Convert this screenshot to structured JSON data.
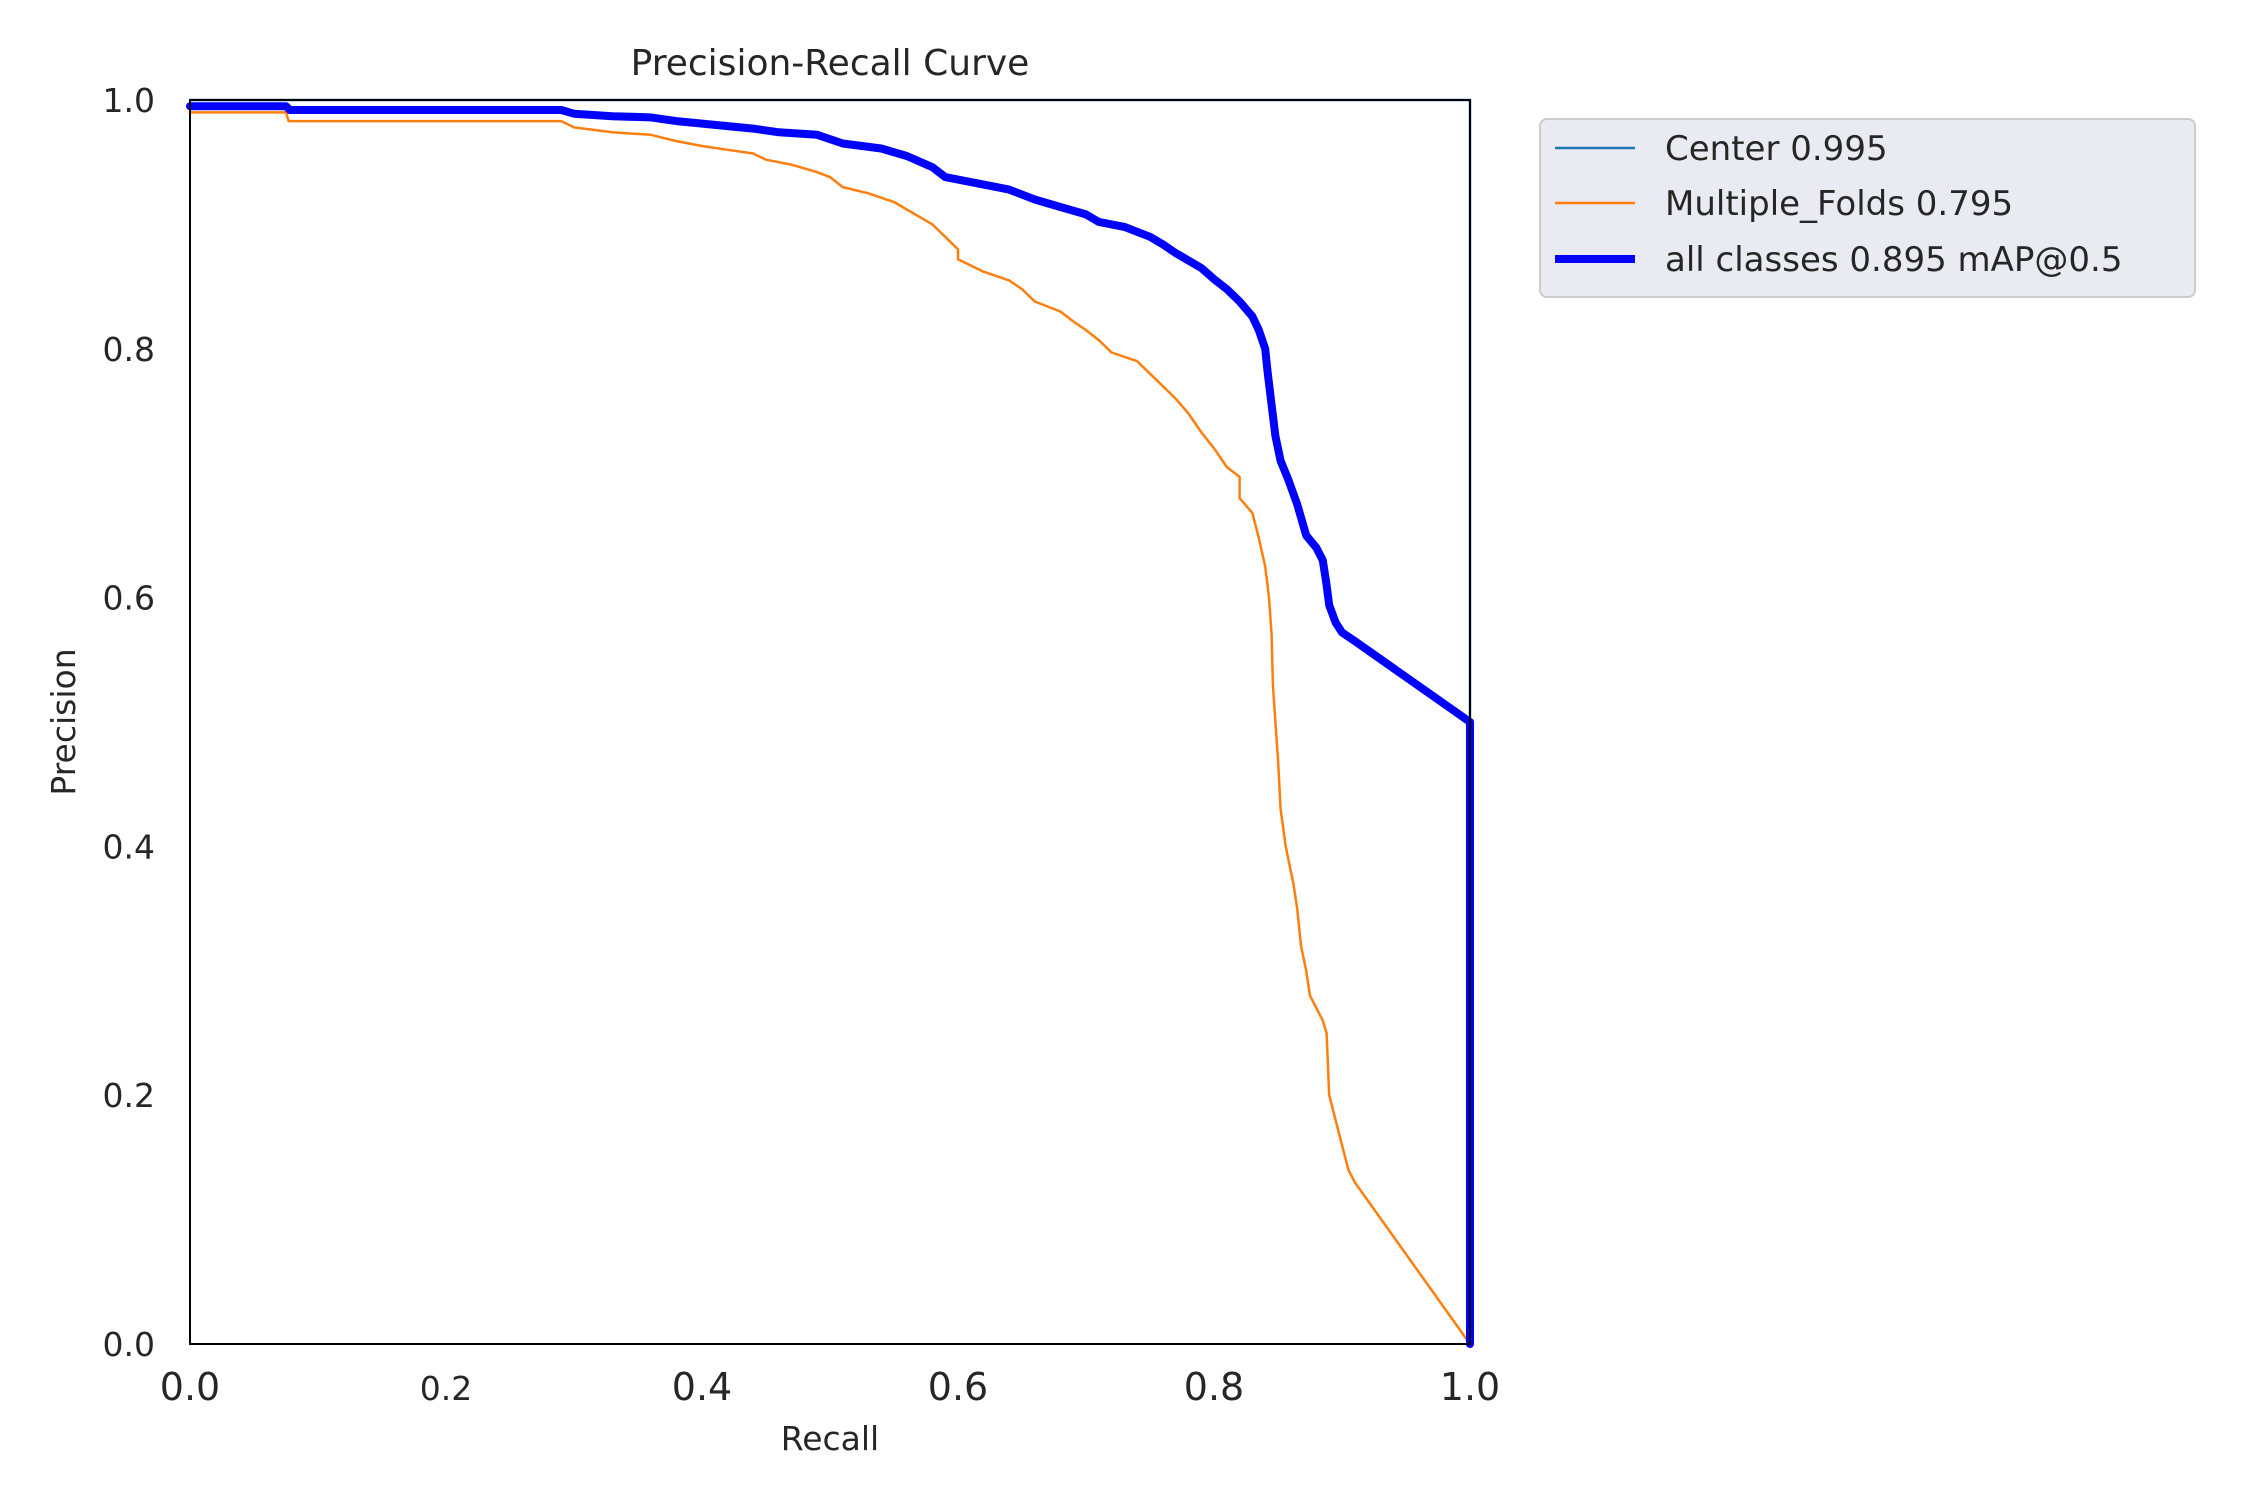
{
  "chart_data": {
    "type": "line",
    "title": "Precision-Recall Curve",
    "xlabel": "Recall",
    "ylabel": "Precision",
    "xlim": [
      0.0,
      1.0
    ],
    "ylim": [
      0.0,
      1.0
    ],
    "x_ticks": [
      0.0,
      0.2,
      0.4,
      0.6,
      0.8,
      1.0
    ],
    "y_ticks": [
      0.0,
      0.2,
      0.4,
      0.6,
      0.8,
      1.0
    ],
    "x_tick_labels": [
      "0.0",
      "0.2",
      "0.4",
      "0.6",
      "0.8",
      "1.0"
    ],
    "y_tick_labels": [
      "0.0",
      "0.2",
      "0.4",
      "0.6",
      "0.8",
      "1.0"
    ],
    "grid": false,
    "legend_position": "outside-top-right",
    "series": [
      {
        "name": "Center 0.995",
        "color": "#1f77b4",
        "width": "thin",
        "points": [
          [
            0.0,
            1.0
          ],
          [
            0.999,
            1.0
          ],
          [
            1.0,
            1.0
          ],
          [
            1.0,
            0.0
          ]
        ]
      },
      {
        "name": "Multiple_Folds 0.795",
        "color": "#ff7f0e",
        "width": "thin",
        "points": [
          [
            0.0,
            0.99
          ],
          [
            0.075,
            0.99
          ],
          [
            0.077,
            0.983
          ],
          [
            0.1,
            0.983
          ],
          [
            0.2,
            0.983
          ],
          [
            0.29,
            0.983
          ],
          [
            0.3,
            0.978
          ],
          [
            0.33,
            0.974
          ],
          [
            0.36,
            0.972
          ],
          [
            0.38,
            0.967
          ],
          [
            0.4,
            0.963
          ],
          [
            0.42,
            0.96
          ],
          [
            0.44,
            0.957
          ],
          [
            0.45,
            0.952
          ],
          [
            0.47,
            0.948
          ],
          [
            0.49,
            0.942
          ],
          [
            0.5,
            0.938
          ],
          [
            0.51,
            0.93
          ],
          [
            0.53,
            0.925
          ],
          [
            0.55,
            0.918
          ],
          [
            0.56,
            0.912
          ],
          [
            0.58,
            0.9
          ],
          [
            0.59,
            0.89
          ],
          [
            0.6,
            0.88
          ],
          [
            0.6,
            0.872
          ],
          [
            0.62,
            0.862
          ],
          [
            0.64,
            0.855
          ],
          [
            0.65,
            0.848
          ],
          [
            0.66,
            0.838
          ],
          [
            0.68,
            0.83
          ],
          [
            0.69,
            0.822
          ],
          [
            0.7,
            0.815
          ],
          [
            0.71,
            0.807
          ],
          [
            0.72,
            0.797
          ],
          [
            0.74,
            0.79
          ],
          [
            0.75,
            0.78
          ],
          [
            0.76,
            0.77
          ],
          [
            0.77,
            0.76
          ],
          [
            0.78,
            0.748
          ],
          [
            0.79,
            0.733
          ],
          [
            0.8,
            0.72
          ],
          [
            0.81,
            0.705
          ],
          [
            0.82,
            0.697
          ],
          [
            0.82,
            0.68
          ],
          [
            0.83,
            0.668
          ],
          [
            0.835,
            0.648
          ],
          [
            0.84,
            0.625
          ],
          [
            0.843,
            0.6
          ],
          [
            0.845,
            0.57
          ],
          [
            0.846,
            0.53
          ],
          [
            0.848,
            0.5
          ],
          [
            0.85,
            0.47
          ],
          [
            0.852,
            0.43
          ],
          [
            0.856,
            0.4
          ],
          [
            0.862,
            0.37
          ],
          [
            0.865,
            0.35
          ],
          [
            0.868,
            0.32
          ],
          [
            0.872,
            0.3
          ],
          [
            0.875,
            0.28
          ],
          [
            0.88,
            0.27
          ],
          [
            0.885,
            0.26
          ],
          [
            0.888,
            0.25
          ],
          [
            0.89,
            0.2
          ],
          [
            0.895,
            0.18
          ],
          [
            0.9,
            0.16
          ],
          [
            0.905,
            0.14
          ],
          [
            0.91,
            0.13
          ],
          [
            1.0,
            0.0
          ]
        ]
      },
      {
        "name": "all classes 0.895 mAP@0.5",
        "color": "#0000ff",
        "width": "thick",
        "points": [
          [
            0.0,
            0.995
          ],
          [
            0.075,
            0.995
          ],
          [
            0.078,
            0.992
          ],
          [
            0.29,
            0.992
          ],
          [
            0.3,
            0.989
          ],
          [
            0.33,
            0.987
          ],
          [
            0.36,
            0.986
          ],
          [
            0.38,
            0.983
          ],
          [
            0.42,
            0.979
          ],
          [
            0.44,
            0.977
          ],
          [
            0.46,
            0.974
          ],
          [
            0.49,
            0.972
          ],
          [
            0.51,
            0.965
          ],
          [
            0.54,
            0.961
          ],
          [
            0.56,
            0.955
          ],
          [
            0.58,
            0.946
          ],
          [
            0.59,
            0.938
          ],
          [
            0.62,
            0.932
          ],
          [
            0.64,
            0.928
          ],
          [
            0.66,
            0.92
          ],
          [
            0.68,
            0.914
          ],
          [
            0.7,
            0.908
          ],
          [
            0.71,
            0.902
          ],
          [
            0.73,
            0.898
          ],
          [
            0.75,
            0.89
          ],
          [
            0.76,
            0.884
          ],
          [
            0.77,
            0.877
          ],
          [
            0.79,
            0.865
          ],
          [
            0.8,
            0.856
          ],
          [
            0.81,
            0.848
          ],
          [
            0.82,
            0.838
          ],
          [
            0.83,
            0.826
          ],
          [
            0.835,
            0.815
          ],
          [
            0.84,
            0.8
          ],
          [
            0.842,
            0.78
          ],
          [
            0.845,
            0.755
          ],
          [
            0.848,
            0.73
          ],
          [
            0.852,
            0.71
          ],
          [
            0.858,
            0.695
          ],
          [
            0.865,
            0.675
          ],
          [
            0.872,
            0.65
          ],
          [
            0.88,
            0.64
          ],
          [
            0.885,
            0.63
          ],
          [
            0.888,
            0.61
          ],
          [
            0.89,
            0.594
          ],
          [
            0.895,
            0.58
          ],
          [
            0.9,
            0.572
          ],
          [
            0.91,
            0.565
          ],
          [
            1.0,
            0.5
          ],
          [
            1.0,
            0.0
          ]
        ]
      }
    ]
  }
}
